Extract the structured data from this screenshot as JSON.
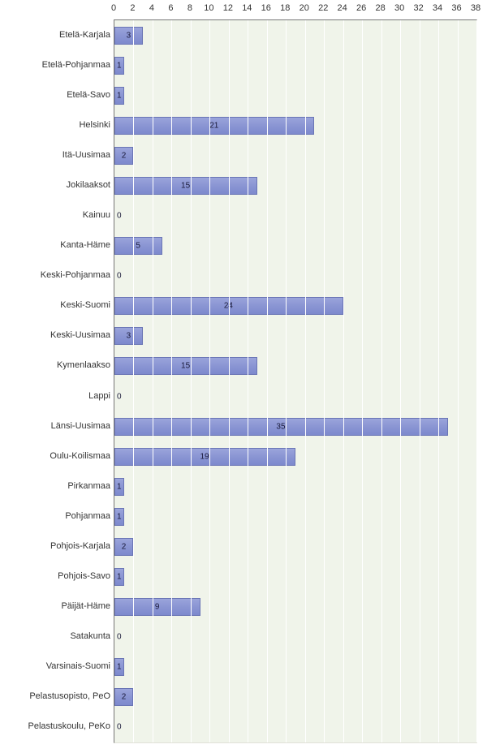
{
  "chart": {
    "type": "bar-horizontal",
    "background_color": "#f0f4ea",
    "grid_color": "#ffffff",
    "bar_color": "#8a95d3",
    "bar_border_color": "#6a75b5",
    "label_fontsize": 11,
    "value_fontsize": 10,
    "xmax": 38,
    "xtick_step": 2,
    "ticks": [
      0,
      2,
      4,
      6,
      8,
      10,
      12,
      14,
      16,
      18,
      20,
      22,
      24,
      26,
      28,
      30,
      32,
      34,
      36,
      38
    ],
    "categories": [
      {
        "label": "Etelä-Karjala",
        "value": 3
      },
      {
        "label": "Etelä-Pohjanmaa",
        "value": 1
      },
      {
        "label": "Etelä-Savo",
        "value": 1
      },
      {
        "label": "Helsinki",
        "value": 21
      },
      {
        "label": "Itä-Uusimaa",
        "value": 2
      },
      {
        "label": "Jokilaaksot",
        "value": 15
      },
      {
        "label": "Kainuu",
        "value": 0
      },
      {
        "label": "Kanta-Häme",
        "value": 5
      },
      {
        "label": "Keski-Pohjanmaa",
        "value": 0
      },
      {
        "label": "Keski-Suomi",
        "value": 24
      },
      {
        "label": "Keski-Uusimaa",
        "value": 3
      },
      {
        "label": "Kymenlaakso",
        "value": 15
      },
      {
        "label": "Lappi",
        "value": 0
      },
      {
        "label": "Länsi-Uusimaa",
        "value": 35
      },
      {
        "label": "Oulu-Koilismaa",
        "value": 19
      },
      {
        "label": "Pirkanmaa",
        "value": 1
      },
      {
        "label": "Pohjanmaa",
        "value": 1
      },
      {
        "label": "Pohjois-Karjala",
        "value": 2
      },
      {
        "label": "Pohjois-Savo",
        "value": 1
      },
      {
        "label": "Päijät-Häme",
        "value": 9
      },
      {
        "label": "Satakunta",
        "value": 0
      },
      {
        "label": "Varsinais-Suomi",
        "value": 1
      },
      {
        "label": "Pelastusopisto,  PeO",
        "value": 2
      },
      {
        "label": "Pelastuskoulu, PeKo",
        "value": 0
      }
    ]
  }
}
